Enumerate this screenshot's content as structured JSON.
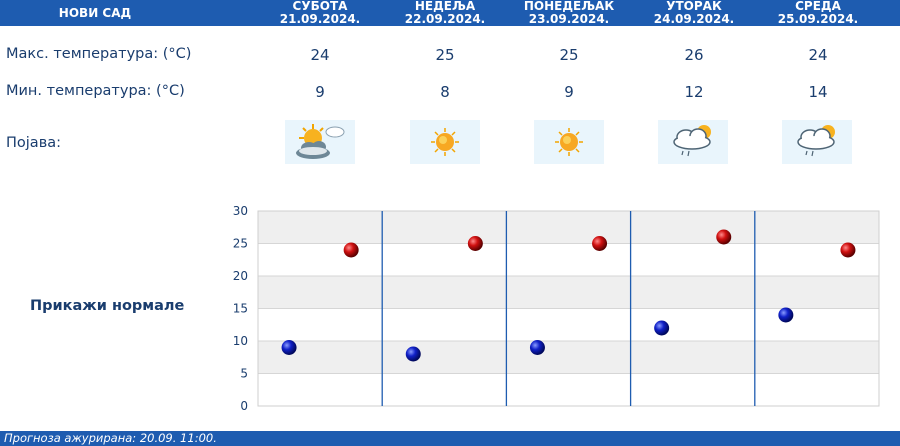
{
  "header": {
    "city": "НОВИ САД",
    "days": [
      {
        "name": "СУБОТА",
        "date": "21.09.2024."
      },
      {
        "name": "НЕДЕЉА",
        "date": "22.09.2024."
      },
      {
        "name": "ПОНЕДЕЉАК",
        "date": "23.09.2024."
      },
      {
        "name": "УТОРАК",
        "date": "24.09.2024."
      },
      {
        "name": "СРЕДА",
        "date": "25.09.2024."
      }
    ]
  },
  "rows": {
    "max_label": "Макс. температура: (°C)",
    "min_label": "Мин. температура: (°C)",
    "phenomenon_label": "Појава:",
    "max": [
      "24",
      "25",
      "25",
      "26",
      "24"
    ],
    "min": [
      "9",
      "8",
      "9",
      "12",
      "14"
    ],
    "icons": [
      "sun-cloud-icon",
      "sun-icon",
      "sun-icon",
      "rain-cloud-sun-icon",
      "rain-cloud-sun-icon"
    ]
  },
  "normals_link": "Прикажи нормале",
  "chart_data": {
    "type": "scatter",
    "categories": [
      "21.09.2024.",
      "22.09.2024.",
      "23.09.2024.",
      "24.09.2024.",
      "25.09.2024."
    ],
    "series": [
      {
        "values": [
          9,
          8,
          9,
          12,
          14
        ],
        "color": "#0a1ab8"
      },
      {
        "values": [
          24,
          25,
          25,
          26,
          24
        ],
        "color": "#c40c0c"
      }
    ],
    "ylim": [
      0,
      30
    ],
    "yticks": [
      "0",
      "5",
      "10",
      "15",
      "20",
      "25",
      "30"
    ],
    "grid": true
  },
  "footer": {
    "text": "Прогноза ажурирана:  20.09.  11:00."
  },
  "colors": {
    "header_bg": "#1e5cb0",
    "text": "#1a3d6e",
    "min_marker": "#0a1ab8",
    "max_marker": "#c40c0c"
  }
}
